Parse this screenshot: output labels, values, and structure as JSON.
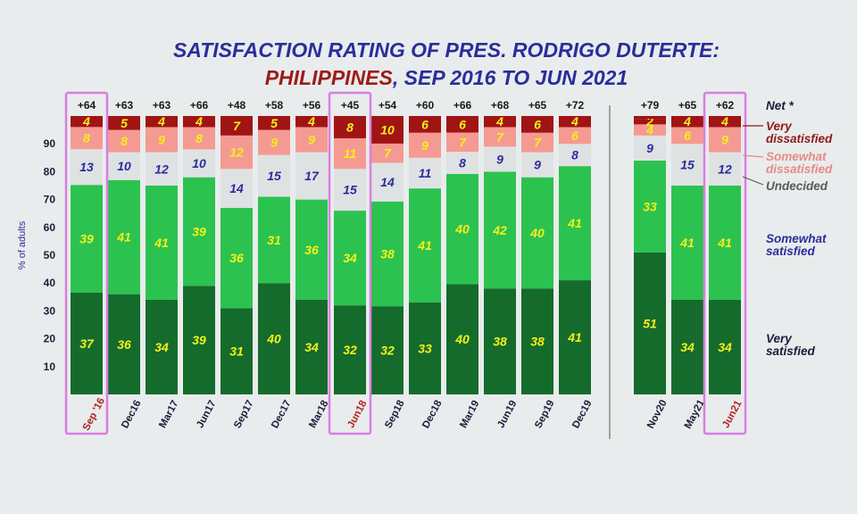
{
  "title_line1": "SATISFACTION RATING OF PRES. RODRIGO DUTERTE:",
  "title_line2_country": "PHILIPPINES",
  "title_line2_rest": ", SEP 2016 TO JUN 2021",
  "y_axis_label": "% of adults",
  "net_header": "Net *",
  "colors": {
    "very_satisfied": "#146b2c",
    "somewhat_satisfied": "#2cc250",
    "undecided": "#dfe2e3",
    "somewhat_dissatisfied": "#f59a92",
    "very_dissatisfied": "#a11414",
    "highlight_box": "#d77fe0",
    "title_blue": "#2a2d9c",
    "title_red": "#9e1b1b"
  },
  "legend": {
    "very_dissatisfied": [
      "Very",
      "dissatisfied"
    ],
    "somewhat_dissatisfied": [
      "Somewhat",
      "dissatisfied"
    ],
    "undecided": "Undecided",
    "somewhat_satisfied": [
      "Somewhat",
      "satisfied"
    ],
    "very_satisfied": [
      "Very",
      "satisfied"
    ]
  },
  "chart_data": {
    "type": "bar",
    "stacked": true,
    "title": "SATISFACTION RATING OF PRES. RODRIGO DUTERTE: PHILIPPINES, SEP 2016 TO JUN 2021",
    "ylabel": "% of adults",
    "ylim": [
      0,
      100
    ],
    "yticks": [
      10,
      20,
      30,
      40,
      50,
      60,
      70,
      80,
      90
    ],
    "categories": [
      "Sep '16",
      "Dec16",
      "Mar17",
      "Jun17",
      "Sep17",
      "Dec17",
      "Mar18",
      "Jun18",
      "Sep18",
      "Dec18",
      "Mar19",
      "Jun19",
      "Sep19",
      "Dec19",
      "Nov20",
      "May21",
      "Jun21"
    ],
    "net": [
      "+64",
      "+63",
      "+63",
      "+66",
      "+48",
      "+58",
      "+56",
      "+45",
      "+54",
      "+60",
      "+66",
      "+68",
      "+65",
      "+72",
      "+79",
      "+65",
      "+62"
    ],
    "highlighted": [
      "Sep '16",
      "Jun18",
      "Jun21"
    ],
    "series": [
      {
        "name": "Very satisfied",
        "values": [
          37,
          36,
          34,
          39,
          31,
          40,
          34,
          32,
          32,
          33,
          40,
          38,
          38,
          41,
          51,
          34,
          34
        ]
      },
      {
        "name": "Somewhat satisfied",
        "values": [
          39,
          41,
          41,
          39,
          36,
          31,
          36,
          34,
          38,
          41,
          40,
          42,
          40,
          41,
          33,
          41,
          41
        ]
      },
      {
        "name": "Undecided",
        "values": [
          13,
          10,
          12,
          10,
          14,
          15,
          17,
          15,
          14,
          11,
          8,
          9,
          9,
          8,
          9,
          15,
          12
        ]
      },
      {
        "name": "Somewhat dissatisfied",
        "values": [
          8,
          8,
          9,
          8,
          12,
          9,
          9,
          11,
          7,
          9,
          7,
          7,
          7,
          6,
          4,
          6,
          9
        ]
      },
      {
        "name": "Very dissatisfied",
        "values": [
          4,
          5,
          4,
          4,
          7,
          5,
          4,
          8,
          10,
          6,
          6,
          4,
          6,
          4,
          2,
          4,
          4
        ]
      }
    ],
    "grid": false,
    "legend_position": "right"
  }
}
